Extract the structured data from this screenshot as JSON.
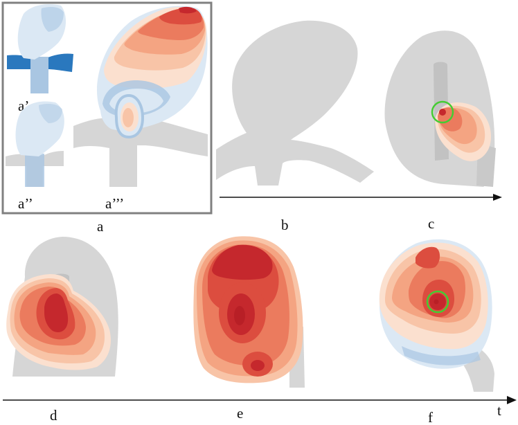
{
  "figure": {
    "panel_a_sub_labels": {
      "a1": "a’",
      "a2": "a’’",
      "a3": "a’’’"
    },
    "panel_labels": {
      "a": "a",
      "b": "b",
      "c": "c",
      "d": "d",
      "e": "e",
      "f": "f"
    },
    "axis_label": "t",
    "colors": {
      "vessel_gray": "#d6d6d6",
      "blue_light": "#dbe8f4",
      "blue_mid": "#a9c6e2",
      "blue_dark": "#2a78be",
      "red_darkest": "#c5282d",
      "red_dark": "#dc4d3f",
      "red_mid": "#eb7b5e",
      "red_light": "#f4a482",
      "red_lighter": "#f8c4a7",
      "red_palest": "#fbe0cf",
      "marker_green": "#44cc33",
      "box_border": "#808080",
      "arrow": "#111111"
    }
  }
}
